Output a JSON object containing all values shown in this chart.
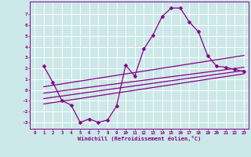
{
  "xlabel": "Windchill (Refroidissement éolien,°C)",
  "bg_color": "#cce8e8",
  "line_color": "#880088",
  "grid_color": "#aadddd",
  "xlim": [
    -0.5,
    23.5
  ],
  "ylim": [
    -3.6,
    8.2
  ],
  "yticks": [
    -3,
    -2,
    -1,
    0,
    1,
    2,
    3,
    4,
    5,
    6,
    7
  ],
  "xticks": [
    0,
    1,
    2,
    3,
    4,
    5,
    6,
    7,
    8,
    9,
    10,
    11,
    12,
    13,
    14,
    15,
    16,
    17,
    18,
    19,
    20,
    21,
    22,
    23
  ],
  "main_x": [
    1,
    2,
    3,
    4,
    5,
    6,
    7,
    8,
    9,
    10,
    11,
    12,
    13,
    14,
    15,
    16,
    17,
    18,
    19,
    20,
    21,
    22,
    23
  ],
  "main_y": [
    2.2,
    0.7,
    -1.0,
    -1.4,
    -3.0,
    -2.7,
    -3.0,
    -2.8,
    -1.5,
    2.3,
    1.3,
    3.8,
    5.1,
    6.8,
    7.6,
    7.6,
    6.3,
    5.4,
    3.2,
    2.2,
    2.1,
    1.9,
    1.7
  ],
  "diag_lines": [
    {
      "x": [
        1,
        23
      ],
      "y": [
        -1.3,
        1.5
      ]
    },
    {
      "x": [
        1,
        23
      ],
      "y": [
        -0.8,
        1.8
      ]
    },
    {
      "x": [
        1,
        23
      ],
      "y": [
        -0.3,
        2.1
      ]
    },
    {
      "x": [
        1,
        23
      ],
      "y": [
        0.3,
        3.2
      ]
    }
  ],
  "marker": "D",
  "markersize": 2.5,
  "linewidth": 0.9
}
